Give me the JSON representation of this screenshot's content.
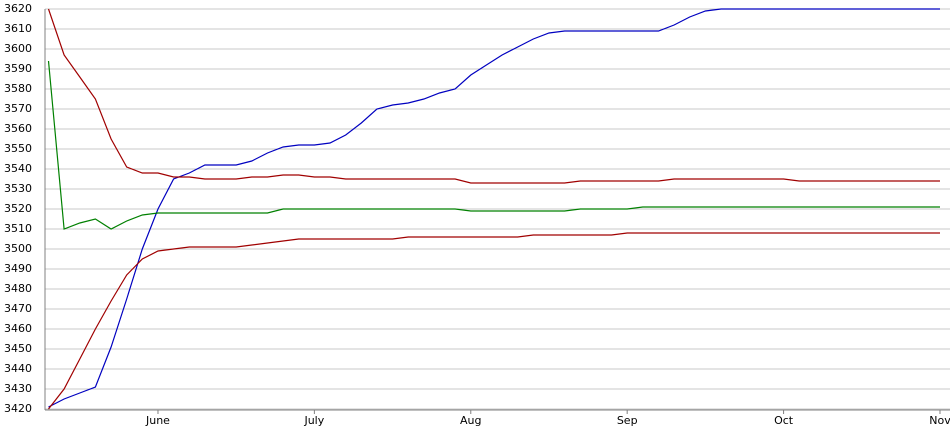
{
  "chart_data": {
    "type": "line",
    "categories": [
      null,
      null,
      null,
      null,
      null,
      null,
      null,
      "June",
      null,
      null,
      null,
      null,
      null,
      null,
      null,
      null,
      null,
      "July",
      null,
      null,
      null,
      null,
      null,
      null,
      null,
      null,
      null,
      "Aug",
      null,
      null,
      null,
      null,
      null,
      null,
      null,
      null,
      null,
      "Sep",
      null,
      null,
      null,
      null,
      null,
      null,
      null,
      null,
      null,
      "Oct",
      null,
      null,
      null,
      null,
      null,
      null,
      null,
      null,
      null,
      "Nov"
    ],
    "series": [
      {
        "color": "#0000c0",
        "values": [
          3421,
          3425,
          3428,
          3431,
          3451,
          3475,
          3500,
          3520,
          3535,
          3538,
          3542,
          3542,
          3542,
          3544,
          3548,
          3551,
          3552,
          3552,
          3553,
          3557,
          3563,
          3570,
          3572,
          3573,
          3575,
          3578,
          3580,
          3587,
          3592,
          3597,
          3601,
          3605,
          3608,
          3609,
          3609,
          3609,
          3609,
          3609,
          3609,
          3609,
          3612,
          3616,
          3619,
          3620,
          3620,
          3620,
          3620,
          3620,
          3620,
          3620,
          3620,
          3620,
          3620,
          3620,
          3620,
          3620,
          3620,
          3620
        ]
      },
      {
        "color": "#a00000",
        "values": [
          3620,
          3597,
          3586,
          3575,
          3555,
          3541,
          3538,
          3538,
          3536,
          3536,
          3535,
          3535,
          3535,
          3536,
          3536,
          3537,
          3537,
          3536,
          3536,
          3535,
          3535,
          3535,
          3535,
          3535,
          3535,
          3535,
          3535,
          3533,
          3533,
          3533,
          3533,
          3533,
          3533,
          3533,
          3534,
          3534,
          3534,
          3534,
          3534,
          3534,
          3535,
          3535,
          3535,
          3535,
          3535,
          3535,
          3535,
          3535,
          3534,
          3534,
          3534,
          3534,
          3534,
          3534,
          3534,
          3534,
          3534,
          3534
        ]
      },
      {
        "color": "#008000",
        "values": [
          3594,
          3510,
          3513,
          3515,
          3510,
          3514,
          3517,
          3518,
          3518,
          3518,
          3518,
          3518,
          3518,
          3518,
          3518,
          3520,
          3520,
          3520,
          3520,
          3520,
          3520,
          3520,
          3520,
          3520,
          3520,
          3520,
          3520,
          3519,
          3519,
          3519,
          3519,
          3519,
          3519,
          3519,
          3520,
          3520,
          3520,
          3520,
          3521,
          3521,
          3521,
          3521,
          3521,
          3521,
          3521,
          3521,
          3521,
          3521,
          3521,
          3521,
          3521,
          3521,
          3521,
          3521,
          3521,
          3521,
          3521,
          3521
        ]
      },
      {
        "color": "#a00000",
        "values": [
          3420,
          3430,
          3445,
          3460,
          3474,
          3487,
          3495,
          3499,
          3500,
          3501,
          3501,
          3501,
          3501,
          3502,
          3503,
          3504,
          3505,
          3505,
          3505,
          3505,
          3505,
          3505,
          3505,
          3506,
          3506,
          3506,
          3506,
          3506,
          3506,
          3506,
          3506,
          3507,
          3507,
          3507,
          3507,
          3507,
          3507,
          3508,
          3508,
          3508,
          3508,
          3508,
          3508,
          3508,
          3508,
          3508,
          3508,
          3508,
          3508,
          3508,
          3508,
          3508,
          3508,
          3508,
          3508,
          3508,
          3508,
          3508
        ]
      }
    ],
    "ylim": [
      3420,
      3620
    ],
    "yticks": [
      3420,
      3430,
      3440,
      3450,
      3460,
      3470,
      3480,
      3490,
      3500,
      3510,
      3520,
      3530,
      3540,
      3550,
      3560,
      3570,
      3580,
      3590,
      3600,
      3610,
      3620
    ],
    "grid": true
  }
}
